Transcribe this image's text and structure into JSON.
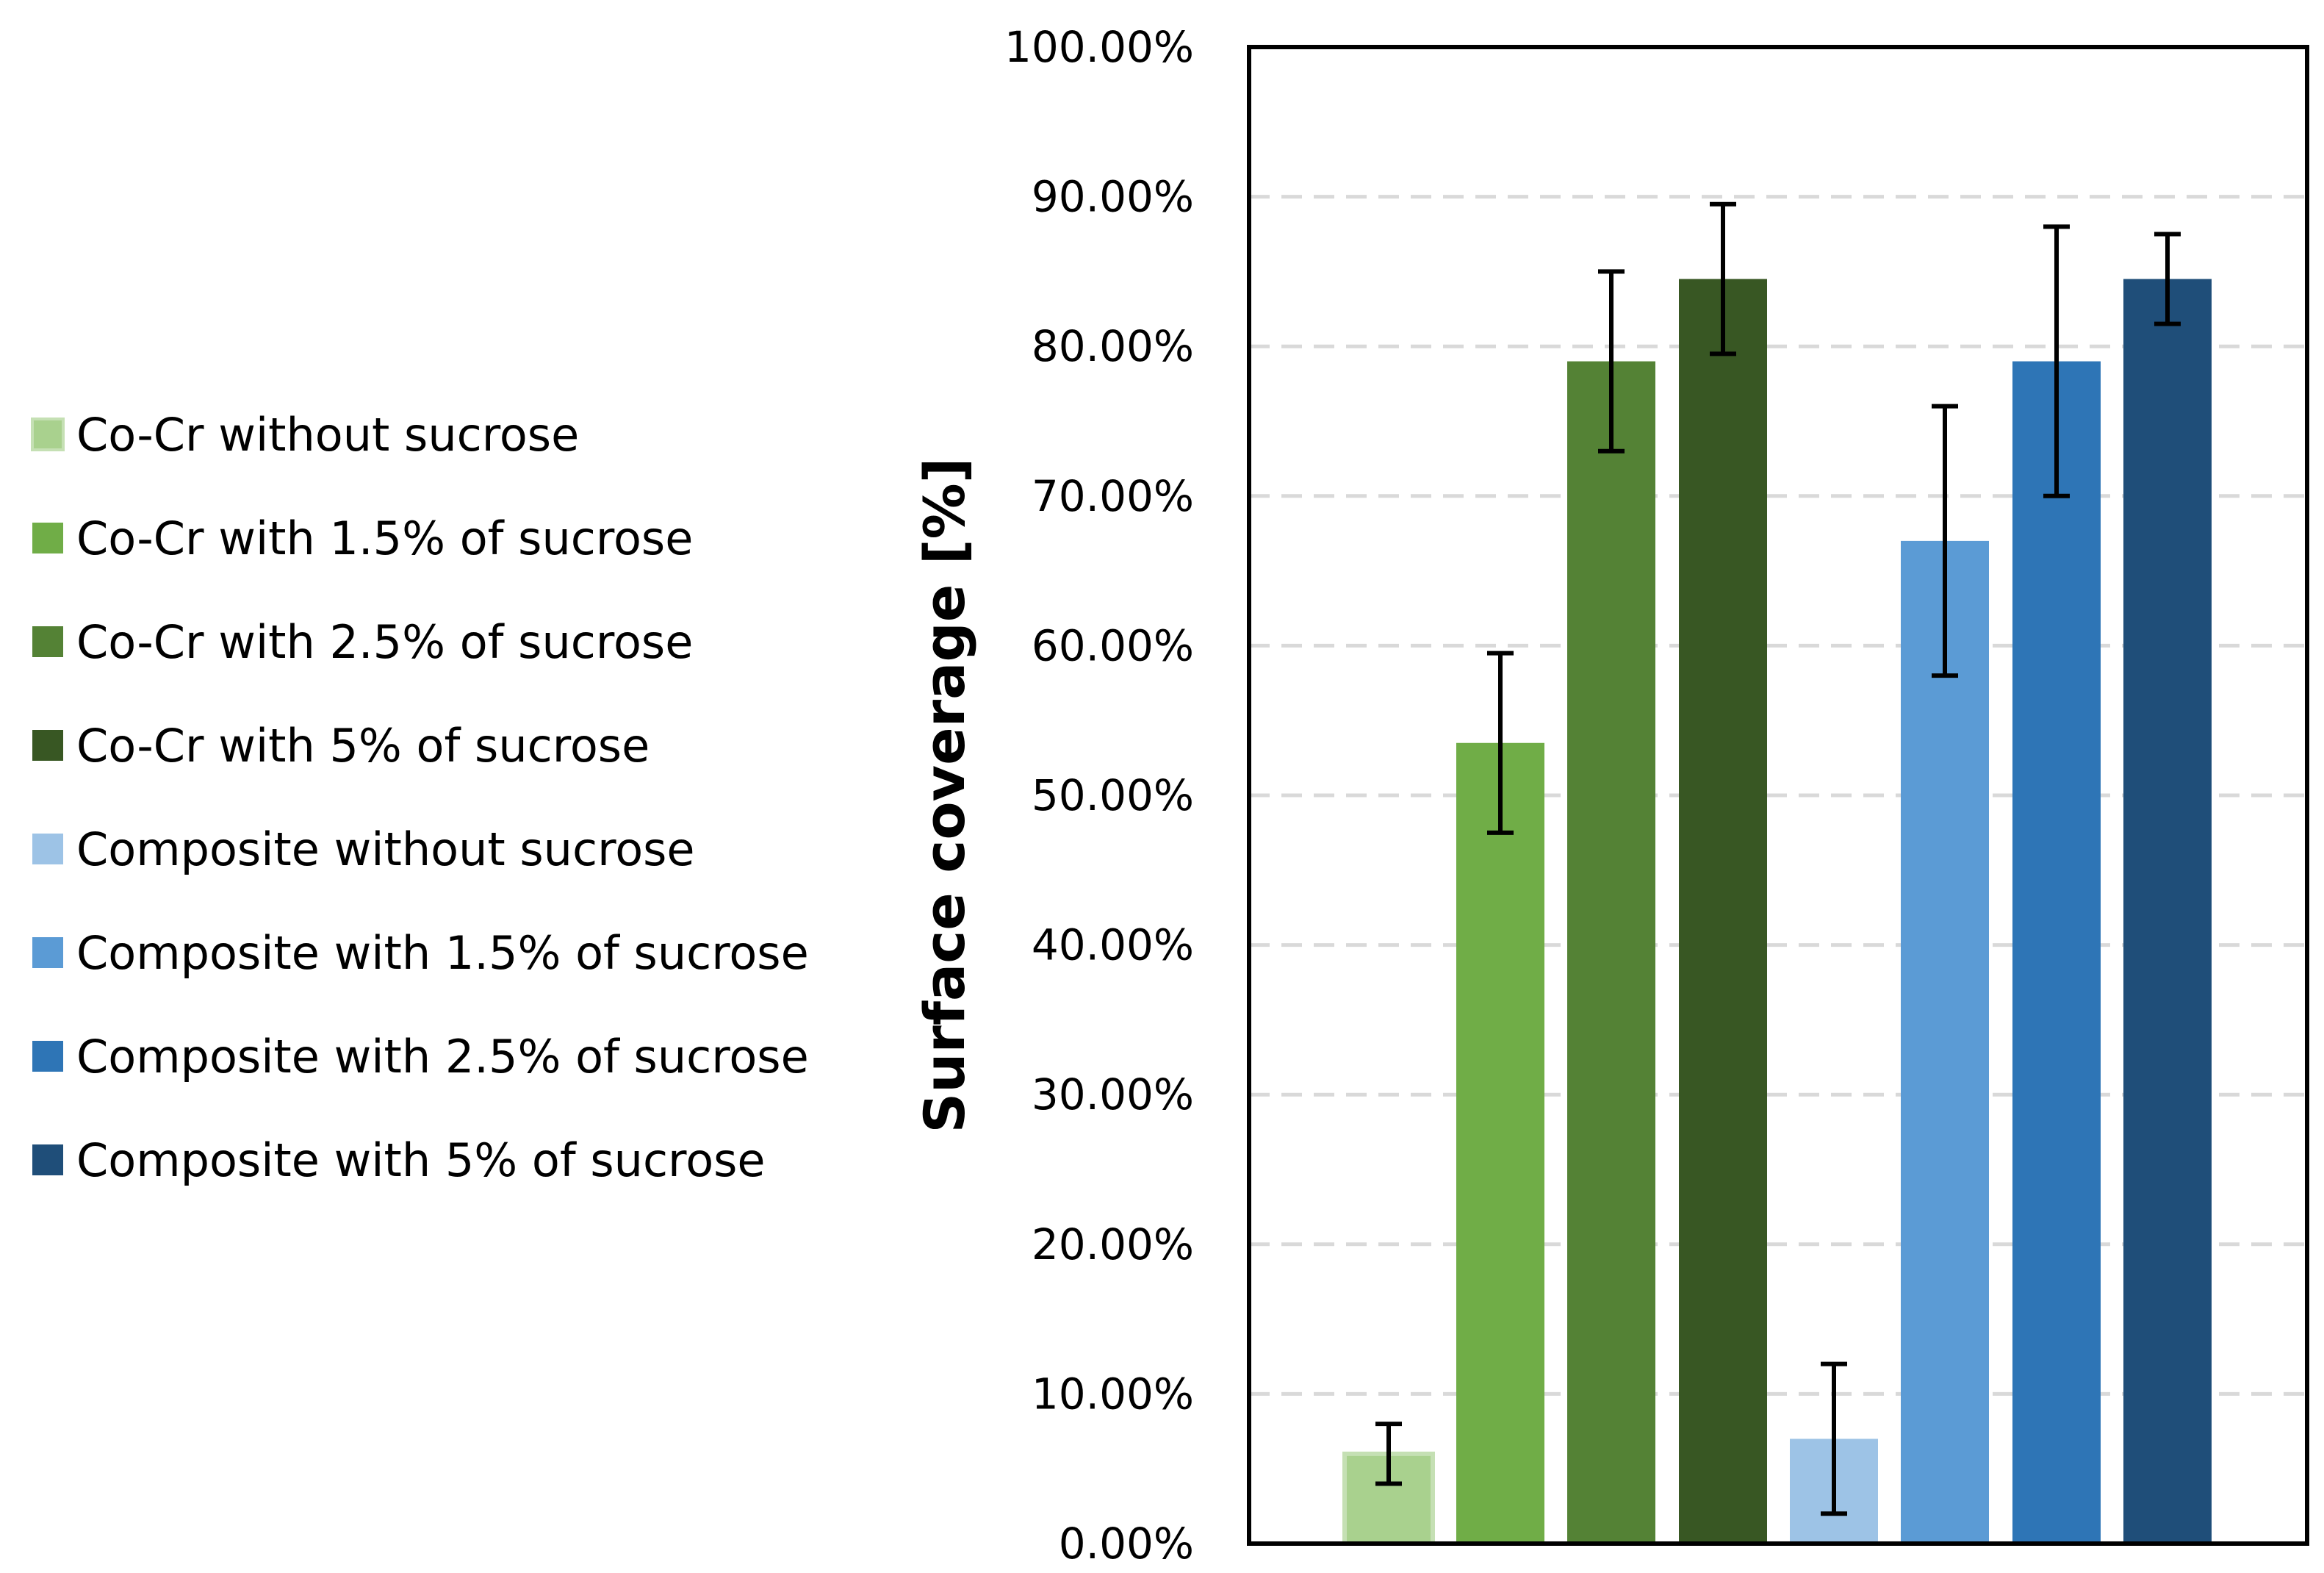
{
  "chart_data": {
    "type": "bar",
    "title": "",
    "xlabel": "",
    "ylabel": "Surface coverage [%]",
    "ylim": [
      0,
      100
    ],
    "yticks": [
      "0.00%",
      "10.00%",
      "20.00%",
      "30.00%",
      "40.00%",
      "50.00%",
      "60.00%",
      "70.00%",
      "80.00%",
      "90.00%",
      "100.00%"
    ],
    "grid": true,
    "legend_position": "left",
    "bars": [
      {
        "name": "Co-Cr without sucrose",
        "value": 6.0,
        "error_low": 4.0,
        "error_high": 8.0,
        "color": "#a9d18e"
      },
      {
        "name": "Co-Cr with 1.5% of sucrose",
        "value": 53.5,
        "error_low": 47.5,
        "error_high": 59.5,
        "color": "#70ad47"
      },
      {
        "name": "Co-Cr with 2.5% of sucrose",
        "value": 79.0,
        "error_low": 73.0,
        "error_high": 85.0,
        "color": "#548235"
      },
      {
        "name": "Co-Cr with 5% of sucrose",
        "value": 84.5,
        "error_low": 79.5,
        "error_high": 89.5,
        "color": "#385723"
      },
      {
        "name": "Composite without sucrose",
        "value": 7.0,
        "error_low": 2.0,
        "error_high": 12.0,
        "color": "#9dc3e6"
      },
      {
        "name": "Composite with 1.5% of sucrose",
        "value": 67.0,
        "error_low": 58.0,
        "error_high": 76.0,
        "color": "#5b9bd5"
      },
      {
        "name": "Composite with 2.5% of sucrose",
        "value": 79.0,
        "error_low": 70.0,
        "error_high": 88.0,
        "color": "#2e75b6"
      },
      {
        "name": "Composite with 5% of sucrose",
        "value": 84.5,
        "error_low": 81.5,
        "error_high": 87.5,
        "color": "#1f4e79"
      }
    ]
  }
}
